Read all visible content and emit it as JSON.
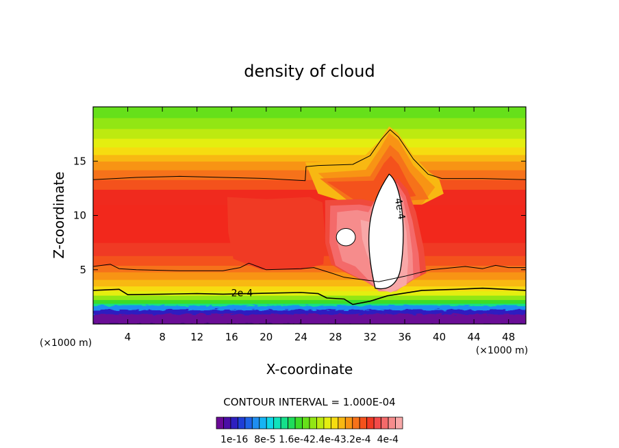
{
  "chart_data": {
    "type": "heatmap",
    "title": "density of cloud",
    "xlabel": "X-coordinate",
    "ylabel": "Z-coordinate",
    "x_unit_label_left": "(×1000 m)",
    "x_unit_label_right": "(×1000 m)",
    "xlim": [
      0,
      50
    ],
    "ylim": [
      0,
      20
    ],
    "x_ticks": [
      4,
      8,
      12,
      16,
      20,
      24,
      28,
      32,
      36,
      40,
      44,
      48
    ],
    "x_tick_labels": [
      "4",
      "8",
      "12",
      "16",
      "20",
      "24",
      "28",
      "32",
      "36",
      "40",
      "44",
      "48"
    ],
    "y_ticks": [
      5,
      10,
      15
    ],
    "y_tick_labels": [
      "5",
      "10",
      "15"
    ],
    "contour_interval_text": "CONTOUR INTERVAL = 1.000E-04",
    "contour_labels": [
      {
        "text": "2e-4",
        "x": 17.2,
        "z": 2.8
      },
      {
        "text": "4e-4",
        "x": 35.4,
        "z": 10.6
      }
    ],
    "colorbar": {
      "tick_labels": [
        "1e-16",
        "8e-5",
        "1.6e-4",
        "2.4e-4",
        "3.2e-4",
        "4e-4"
      ],
      "tick_label_text": "1e-16  8e-5 1.6e-42.4e-43.2e-4  4e-4",
      "colors": [
        "#6a0a96",
        "#4b0ea6",
        "#2e1fc0",
        "#1f3ed6",
        "#1f63e6",
        "#1f8ef0",
        "#16b4f4",
        "#10d6e8",
        "#10e2bc",
        "#14e08a",
        "#1fdc5a",
        "#3cdc28",
        "#66e01a",
        "#92e614",
        "#bdea10",
        "#e4ee10",
        "#f6dc10",
        "#f8b812",
        "#f89414",
        "#f6721a",
        "#f4521c",
        "#f03a24",
        "#f24a4a",
        "#f46a6a",
        "#f68c8c",
        "#f8a8a8"
      ]
    },
    "grid": false
  }
}
